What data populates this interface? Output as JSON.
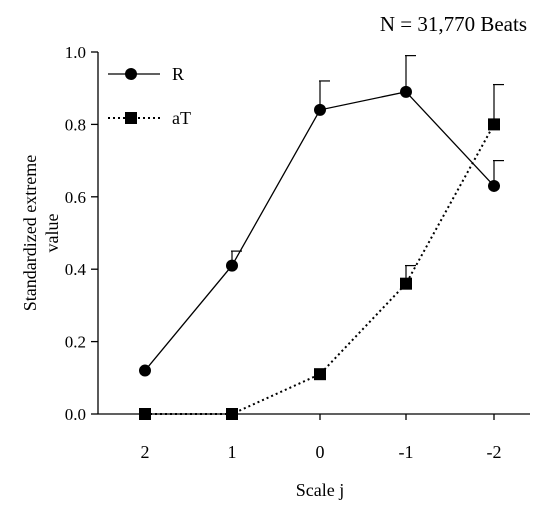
{
  "chart_data": {
    "type": "line",
    "annotation": "N = 31,770 Beats",
    "xlabel": "Scale j",
    "ylabel_lines": [
      "Standardized extreme",
      "value"
    ],
    "categories": [
      "2",
      "1",
      "0",
      "-1",
      "-2"
    ],
    "ylim": [
      0,
      1.0
    ],
    "yticks": [
      "0.0",
      "0.2",
      "0.4",
      "0.6",
      "0.8",
      "1.0"
    ],
    "grid": false,
    "legend_position": "top-left",
    "series": [
      {
        "name": "R",
        "marker": "circle",
        "line": "solid",
        "values": [
          0.12,
          0.41,
          0.84,
          0.89,
          0.63
        ],
        "error_plus": [
          null,
          0.04,
          0.08,
          0.1,
          0.07
        ]
      },
      {
        "name": "aT",
        "marker": "square",
        "line": "dotted",
        "values": [
          0.0,
          0.0,
          0.11,
          0.36,
          0.8
        ],
        "error_plus": [
          null,
          null,
          null,
          0.05,
          0.11
        ]
      }
    ]
  }
}
